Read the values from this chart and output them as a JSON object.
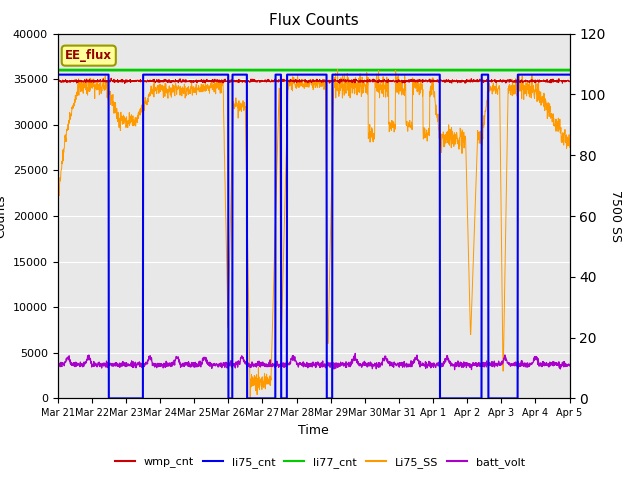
{
  "title": "Flux Counts",
  "xlabel": "Time",
  "ylabel_left": "Counts",
  "ylabel_right": "7500 SS",
  "annotation": "EE_flux",
  "ylim_left": [
    0,
    40000
  ],
  "ylim_right": [
    0,
    120
  ],
  "total_days": 15,
  "x_tick_labels": [
    "Mar 21",
    "Mar 22",
    "Mar 23",
    "Mar 24",
    "Mar 25",
    "Mar 26",
    "Mar 27",
    "Mar 28",
    "Mar 29",
    "Mar 30",
    "Mar 31",
    "Apr 1",
    "Apr 2",
    "Apr 3",
    "Apr 4",
    "Apr 5"
  ],
  "legend_entries": [
    "wmp_cnt",
    "li75_cnt",
    "li77_cnt",
    "Li75_SS",
    "batt_volt"
  ],
  "legend_colors": [
    "#cc0000",
    "#0000ee",
    "#00cc00",
    "#ff9900",
    "#aa00cc"
  ],
  "li77_value": 36000,
  "li75_base": 35500,
  "li75_ss_base": 34500,
  "batt_base": 3700,
  "wmp_base": 34800,
  "figsize": [
    6.4,
    4.8
  ],
  "dpi": 100
}
